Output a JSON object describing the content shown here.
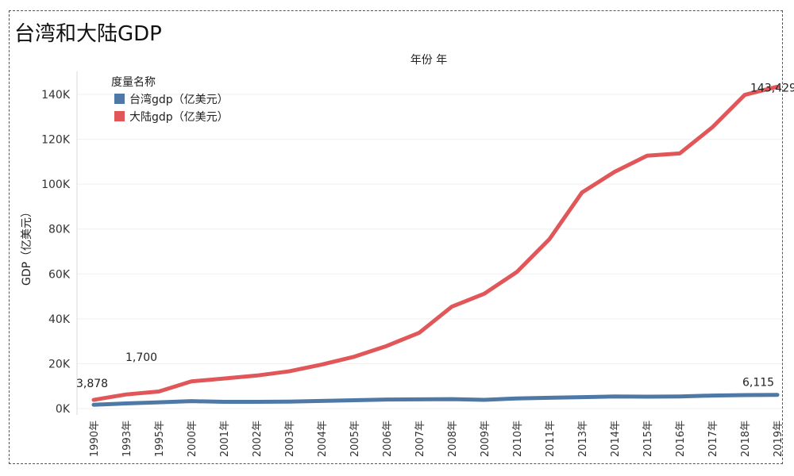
{
  "chart_data": {
    "type": "line",
    "title": "台湾和大陆GDP",
    "top_axis_label": "年份 年",
    "ylabel": "GDP（亿美元）",
    "ylim": [
      0,
      150000
    ],
    "y_ticks": [
      0,
      20000,
      40000,
      60000,
      80000,
      100000,
      120000,
      140000
    ],
    "y_tick_labels": [
      "0K",
      "20K",
      "40K",
      "60K",
      "80K",
      "100K",
      "120K",
      "140K"
    ],
    "categories": [
      "1990年",
      "1993年",
      "1995年",
      "2000年",
      "2001年",
      "2002年",
      "2003年",
      "2004年",
      "2005年",
      "2006年",
      "2007年",
      "2008年",
      "2009年",
      "2010年",
      "2011年",
      "2013年",
      "2014年",
      "2015年",
      "2016年",
      "2017年",
      "2018年",
      "2019年"
    ],
    "legend_title": "度量名称",
    "series": [
      {
        "name": "台湾gdp（亿美元）",
        "color": "#4e79a7",
        "values": [
          1700,
          2300,
          2800,
          3300,
          3000,
          3000,
          3100,
          3400,
          3700,
          4000,
          4100,
          4200,
          3900,
          4500,
          4800,
          5100,
          5400,
          5300,
          5400,
          5800,
          6000,
          6115
        ]
      },
      {
        "name": "大陆gdp（亿美元）",
        "color": "#e15759",
        "values": [
          3878,
          6300,
          7600,
          12100,
          13400,
          14700,
          16600,
          19600,
          23100,
          27900,
          33800,
          45400,
          51200,
          60900,
          75500,
          96300,
          105500,
          112700,
          113700,
          125300,
          139800,
          143429
        ]
      }
    ],
    "data_labels": [
      {
        "series": 1,
        "index": 0,
        "text": "3,878"
      },
      {
        "series": 0,
        "index": 0,
        "text": "1,700"
      },
      {
        "series": 1,
        "index": 21,
        "text": "143,429"
      },
      {
        "series": 0,
        "index": 21,
        "text": "6,115"
      }
    ]
  }
}
